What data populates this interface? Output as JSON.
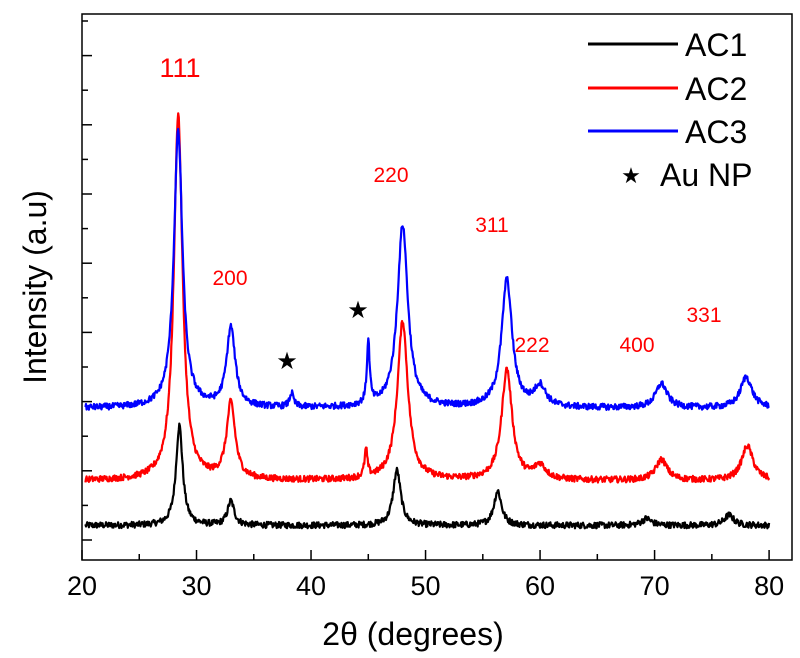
{
  "chart_data": {
    "type": "line",
    "xlabel": "2θ (degrees)",
    "ylabel": "Intensity (a.u)",
    "xlim": [
      20,
      80
    ],
    "xticks": [
      "20",
      "30",
      "40",
      "50",
      "60",
      "70",
      "80"
    ],
    "grid": false,
    "legend_position": "top-right",
    "series": [
      {
        "name": "AC1",
        "color": "#000000",
        "baseline": 0.5,
        "peaks": [
          {
            "x": 28.5,
            "height": 1.45,
            "width": 0.35
          },
          {
            "x": 33.0,
            "height": 0.35,
            "width": 0.35
          },
          {
            "x": 47.5,
            "height": 0.8,
            "width": 0.4
          },
          {
            "x": 56.3,
            "height": 0.5,
            "width": 0.4
          },
          {
            "x": 69.3,
            "height": 0.1,
            "width": 0.5
          },
          {
            "x": 76.5,
            "height": 0.15,
            "width": 0.5
          }
        ]
      },
      {
        "name": "AC2",
        "color": "#ff0000",
        "baseline": 1.15,
        "peaks": [
          {
            "x": 28.4,
            "height": 5.3,
            "width": 0.45
          },
          {
            "x": 33.0,
            "height": 1.1,
            "width": 0.45
          },
          {
            "x": 44.8,
            "height": 0.4,
            "width": 0.15
          },
          {
            "x": 48.0,
            "height": 2.3,
            "width": 0.55
          },
          {
            "x": 57.1,
            "height": 1.6,
            "width": 0.55
          },
          {
            "x": 60.0,
            "height": 0.2,
            "width": 0.6
          },
          {
            "x": 70.6,
            "height": 0.3,
            "width": 0.6
          },
          {
            "x": 78.1,
            "height": 0.5,
            "width": 0.6
          }
        ]
      },
      {
        "name": "AC3",
        "color": "#0000ff",
        "baseline": 2.2,
        "peaks": [
          {
            "x": 28.4,
            "height": 4.0,
            "width": 0.45
          },
          {
            "x": 33.0,
            "height": 1.15,
            "width": 0.45
          },
          {
            "x": 38.3,
            "height": 0.2,
            "width": 0.2
          },
          {
            "x": 45.0,
            "height": 0.9,
            "width": 0.15
          },
          {
            "x": 48.0,
            "height": 2.65,
            "width": 0.55
          },
          {
            "x": 57.1,
            "height": 1.85,
            "width": 0.55
          },
          {
            "x": 60.0,
            "height": 0.3,
            "width": 0.6
          },
          {
            "x": 70.6,
            "height": 0.35,
            "width": 0.6
          },
          {
            "x": 78.0,
            "height": 0.45,
            "width": 0.6
          }
        ]
      }
    ],
    "legend": [
      {
        "label": "AC1",
        "color": "#000000",
        "marker": "line"
      },
      {
        "label": "AC2",
        "color": "#ff0000",
        "marker": "line"
      },
      {
        "label": "AC3",
        "color": "#0000ff",
        "marker": "line"
      },
      {
        "label": "Au NP",
        "color": "#000000",
        "marker": "★"
      }
    ],
    "annotations": [
      {
        "text": "111",
        "x": 28.4
      },
      {
        "text": "200",
        "x": 33.0
      },
      {
        "text": "220",
        "x": 48.0
      },
      {
        "text": "311",
        "x": 57.1
      },
      {
        "text": "222",
        "x": 60.5
      },
      {
        "text": "400",
        "x": 70.3
      },
      {
        "text": "331",
        "x": 77.0
      }
    ],
    "markers": [
      {
        "symbol": "★",
        "x": 38.3
      },
      {
        "symbol": "★",
        "x": 44.9
      }
    ]
  }
}
